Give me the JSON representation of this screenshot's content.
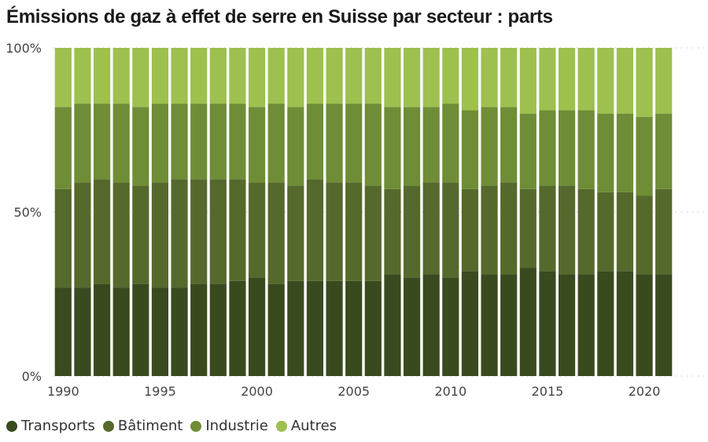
{
  "title": "Émissions de gaz à effet de serre en Suisse par secteur : parts",
  "chart_data": {
    "type": "bar",
    "stacked": true,
    "x": [
      1990,
      1991,
      1992,
      1993,
      1994,
      1995,
      1996,
      1997,
      1998,
      1999,
      2000,
      2001,
      2002,
      2003,
      2004,
      2005,
      2006,
      2007,
      2008,
      2009,
      2010,
      2011,
      2012,
      2013,
      2014,
      2015,
      2016,
      2017,
      2018,
      2019,
      2020,
      2021
    ],
    "x_ticks": [
      "1990",
      "1995",
      "2000",
      "2005",
      "2010",
      "2015",
      "2020"
    ],
    "x_tick_values": [
      1990,
      1995,
      2000,
      2005,
      2010,
      2015,
      2020
    ],
    "y_ticks": [
      "0%",
      "50%",
      "100%"
    ],
    "y_tick_values": [
      0,
      50,
      100
    ],
    "ylim": [
      0,
      100
    ],
    "grid": "horizontal dotted",
    "legend_position": "bottom-left",
    "series": [
      {
        "name": "Transports",
        "color": "#3a4a1f",
        "values": [
          27,
          27,
          28,
          27,
          28,
          27,
          27,
          28,
          28,
          29,
          30,
          28,
          29,
          29,
          29,
          29,
          29,
          31,
          30,
          31,
          30,
          32,
          31,
          31,
          33,
          32,
          31,
          31,
          32,
          32,
          31,
          31
        ]
      },
      {
        "name": "Bâtiment",
        "color": "#56692c",
        "values": [
          30,
          32,
          32,
          32,
          30,
          32,
          33,
          32,
          32,
          31,
          29,
          31,
          29,
          31,
          30,
          30,
          29,
          26,
          28,
          28,
          29,
          25,
          27,
          28,
          24,
          26,
          27,
          26,
          24,
          24,
          24,
          26
        ]
      },
      {
        "name": "Industrie",
        "color": "#6f8d36",
        "values": [
          25,
          24,
          23,
          24,
          24,
          24,
          23,
          23,
          23,
          23,
          23,
          24,
          24,
          23,
          24,
          24,
          25,
          25,
          24,
          23,
          24,
          24,
          24,
          23,
          23,
          23,
          23,
          24,
          24,
          24,
          24,
          23
        ]
      },
      {
        "name": "Autres",
        "color": "#9dc04f",
        "values": [
          18,
          17,
          17,
          17,
          18,
          17,
          17,
          17,
          17,
          17,
          18,
          17,
          18,
          17,
          17,
          17,
          17,
          18,
          18,
          18,
          17,
          19,
          18,
          18,
          20,
          19,
          19,
          19,
          20,
          20,
          21,
          20
        ]
      }
    ]
  }
}
